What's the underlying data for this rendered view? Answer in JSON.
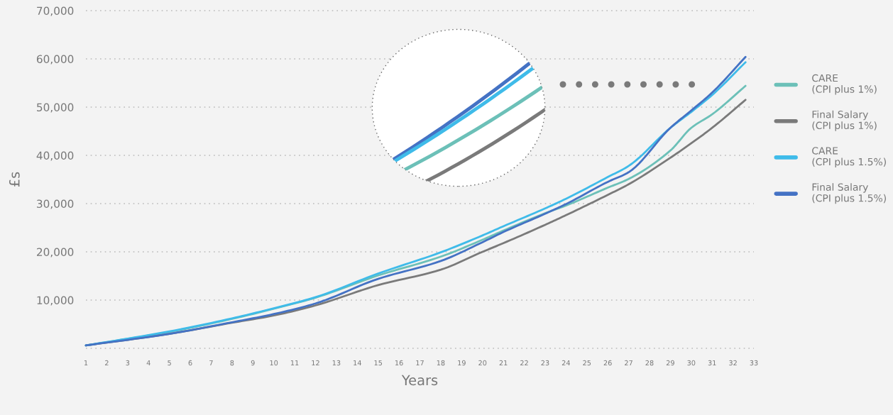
{
  "chart_data": {
    "type": "line",
    "xlabel": "Years",
    "ylabel": "£s",
    "x": [
      1,
      5,
      8,
      10,
      12,
      15,
      18,
      20,
      21,
      23,
      24,
      26,
      27,
      29,
      30,
      31,
      32.6
    ],
    "series": [
      {
        "name": "CARE\n(CPI plus 1%)",
        "color": "#6cc0b8",
        "values": [
          600,
          3400,
          6100,
          8200,
          10500,
          15100,
          19000,
          22500,
          24400,
          28000,
          29600,
          33300,
          35100,
          41000,
          45700,
          48500,
          54400
        ]
      },
      {
        "name": "Final Salary\n(CPI plus 1%)",
        "color": "#7a7a7a",
        "values": [
          600,
          3000,
          5300,
          6800,
          8900,
          13100,
          16300,
          20000,
          21800,
          25600,
          27600,
          31800,
          34000,
          39500,
          42500,
          45700,
          51500
        ]
      },
      {
        "name": "CARE\n(CPI plus 1.5%)",
        "color": "#3fbbe9",
        "values": [
          600,
          3500,
          6200,
          8300,
          10600,
          15500,
          19900,
          23400,
          25300,
          29000,
          31000,
          35500,
          37800,
          45700,
          49000,
          52500,
          59300
        ]
      },
      {
        "name": "Final Salary\n(CPI plus 1.5%)",
        "color": "#4472c4",
        "values": [
          600,
          3000,
          5400,
          7100,
          9300,
          14400,
          18100,
          22000,
          24100,
          27900,
          29900,
          34500,
          36500,
          45700,
          49300,
          53000,
          60400
        ]
      }
    ],
    "xlim": [
      1,
      33
    ],
    "xticks": [
      1,
      2,
      3,
      4,
      5,
      6,
      7,
      8,
      9,
      10,
      11,
      12,
      13,
      14,
      15,
      16,
      17,
      18,
      19,
      20,
      21,
      22,
      23,
      24,
      25,
      26,
      27,
      28,
      29,
      30,
      31,
      32,
      33
    ],
    "ylim": [
      0,
      70000
    ],
    "yticks": [
      {
        "value": 0,
        "label": null
      },
      {
        "value": 10000,
        "label": "10,000"
      },
      {
        "value": 20000,
        "label": "20,000"
      },
      {
        "value": 30000,
        "label": "30,000"
      },
      {
        "value": 40000,
        "label": "40,000"
      },
      {
        "value": 50000,
        "label": "50,000"
      },
      {
        "value": 60000,
        "label": "60,000"
      },
      {
        "value": 70000,
        "label": "70,000"
      }
    ],
    "grid": "y",
    "legend": "right",
    "marker": "none",
    "line_style": "solid"
  }
}
